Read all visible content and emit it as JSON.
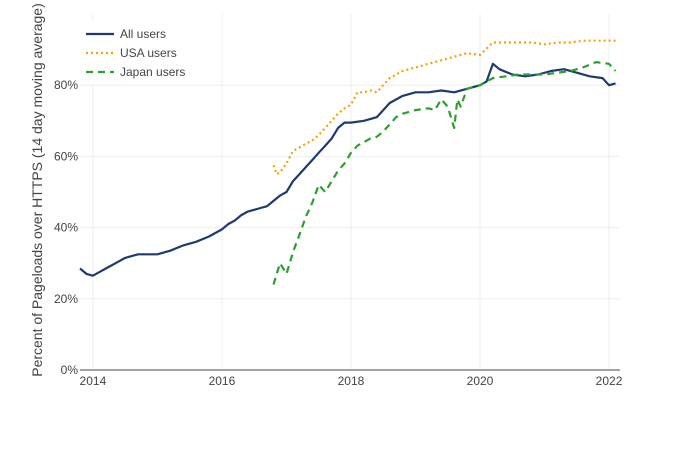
{
  "chart_data": {
    "type": "line",
    "title": "",
    "xlabel": "",
    "ylabel": "Percent of Pageloads over HTTPS (14 day moving average)",
    "xlim": [
      2013.8,
      2022.17
    ],
    "ylim": [
      0,
      100
    ],
    "x_ticks": [
      {
        "value": 2014,
        "label": "2014"
      },
      {
        "value": 2016,
        "label": "2016"
      },
      {
        "value": 2018,
        "label": "2018"
      },
      {
        "value": 2020,
        "label": "2020"
      },
      {
        "value": 2022,
        "label": "2022"
      }
    ],
    "y_ticks": [
      {
        "value": 0,
        "label": "0%"
      },
      {
        "value": 20,
        "label": "20%"
      },
      {
        "value": 40,
        "label": "40%"
      },
      {
        "value": 60,
        "label": "60%"
      },
      {
        "value": 80,
        "label": "80%"
      }
    ],
    "grid": true,
    "legend": "top-left",
    "series": [
      {
        "name": "All users",
        "color": "#1f3b6e",
        "dash": "solid",
        "x": [
          2013.8,
          2013.9,
          2014.0,
          2014.1,
          2014.2,
          2014.3,
          2014.4,
          2014.5,
          2014.6,
          2014.7,
          2014.8,
          2014.9,
          2015.0,
          2015.2,
          2015.4,
          2015.6,
          2015.8,
          2016.0,
          2016.1,
          2016.2,
          2016.3,
          2016.4,
          2016.5,
          2016.6,
          2016.7,
          2016.8,
          2016.9,
          2017.0,
          2017.1,
          2017.2,
          2017.3,
          2017.4,
          2017.5,
          2017.6,
          2017.7,
          2017.8,
          2017.9,
          2018.0,
          2018.2,
          2018.4,
          2018.6,
          2018.8,
          2019.0,
          2019.2,
          2019.4,
          2019.6,
          2019.8,
          2020.0,
          2020.1,
          2020.2,
          2020.3,
          2020.5,
          2020.7,
          2020.9,
          2021.1,
          2021.3,
          2021.5,
          2021.7,
          2021.9,
          2022.0,
          2022.1
        ],
        "values": [
          28.5,
          27,
          26.5,
          27.5,
          28.5,
          29.5,
          30.5,
          31.5,
          32,
          32.5,
          32.5,
          32.5,
          32.5,
          33.5,
          35,
          36,
          37.5,
          39.5,
          41,
          42,
          43.5,
          44.5,
          45,
          45.5,
          46,
          47.5,
          49,
          50,
          53,
          55,
          57,
          59,
          61,
          63,
          65,
          68,
          69.5,
          69.5,
          70,
          71,
          75,
          77,
          78,
          78,
          78.5,
          78,
          79,
          80,
          81,
          86,
          84.5,
          83,
          82.5,
          83,
          84,
          84.5,
          83.5,
          82.5,
          82,
          80,
          80.5
        ]
      },
      {
        "name": "USA users",
        "color": "#f0a500",
        "dash": "dot",
        "x": [
          2016.8,
          2016.85,
          2016.9,
          2017.0,
          2017.1,
          2017.2,
          2017.3,
          2017.4,
          2017.5,
          2017.6,
          2017.7,
          2017.8,
          2017.9,
          2018.0,
          2018.1,
          2018.2,
          2018.3,
          2018.4,
          2018.5,
          2018.6,
          2018.8,
          2019.0,
          2019.2,
          2019.4,
          2019.6,
          2019.8,
          2020.0,
          2020.2,
          2020.4,
          2020.6,
          2020.8,
          2021.0,
          2021.2,
          2021.4,
          2021.6,
          2021.8,
          2022.0,
          2022.15
        ],
        "values": [
          57.5,
          55,
          55.5,
          58,
          61.5,
          62.5,
          63.5,
          64.5,
          66,
          68,
          70,
          72,
          73.5,
          74.5,
          78,
          78,
          78.5,
          78,
          80,
          82,
          84,
          85,
          86,
          87,
          88,
          89,
          88.5,
          92,
          92,
          92,
          92,
          91.5,
          92,
          92,
          92.5,
          92.5,
          92.5,
          92.5
        ]
      },
      {
        "name": "Japan users",
        "color": "#2ca02c",
        "dash": "dash",
        "x": [
          2016.8,
          2016.9,
          2017.0,
          2017.1,
          2017.2,
          2017.3,
          2017.4,
          2017.5,
          2017.6,
          2017.7,
          2017.8,
          2017.9,
          2018.0,
          2018.1,
          2018.2,
          2018.3,
          2018.4,
          2018.5,
          2018.6,
          2018.7,
          2018.8,
          2019.0,
          2019.2,
          2019.3,
          2019.4,
          2019.5,
          2019.6,
          2019.65,
          2019.7,
          2019.8,
          2020.0,
          2020.2,
          2020.4,
          2020.6,
          2020.8,
          2021.0,
          2021.2,
          2021.4,
          2021.6,
          2021.8,
          2022.0,
          2022.1
        ],
        "values": [
          24,
          30,
          27,
          33,
          38,
          43,
          47,
          52,
          50,
          53,
          56,
          58,
          61,
          63,
          64,
          65,
          65.5,
          67,
          69,
          71,
          72,
          73,
          73.5,
          73,
          76,
          74,
          68,
          76,
          74,
          79,
          80,
          82,
          82.5,
          83,
          83,
          83,
          83.5,
          84,
          85,
          86.5,
          86,
          84
        ]
      }
    ]
  }
}
